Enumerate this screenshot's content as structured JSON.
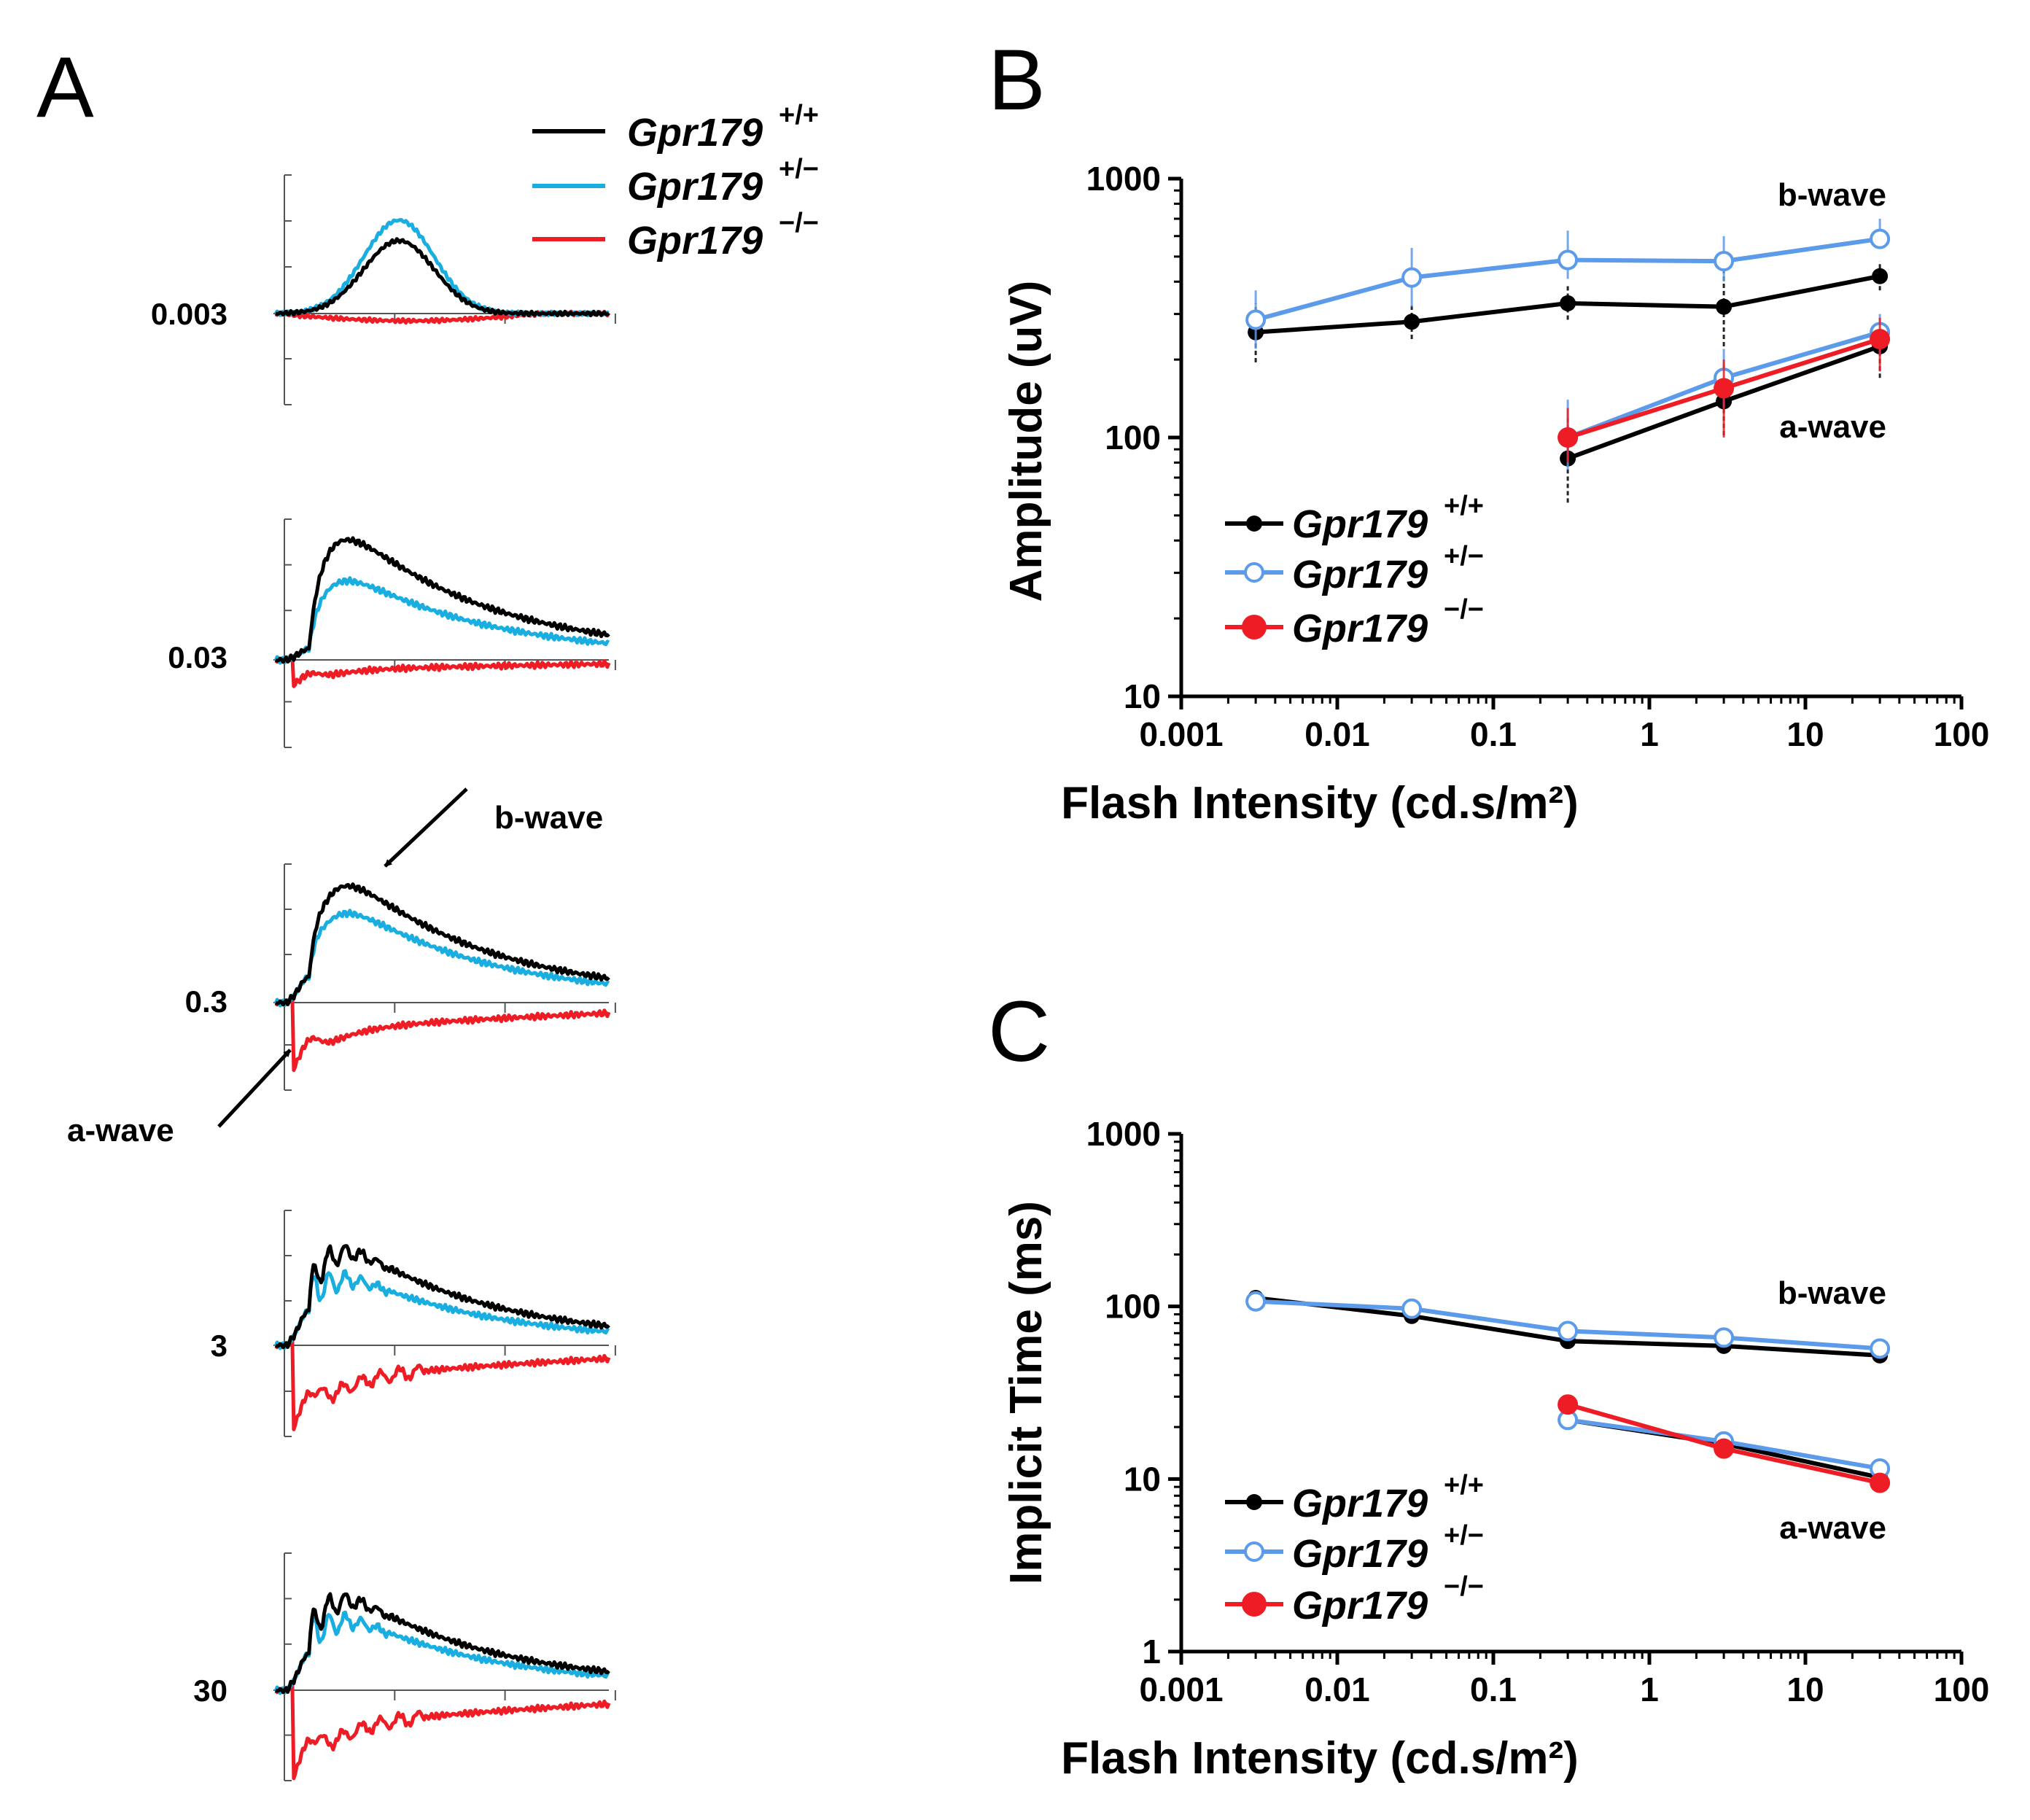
{
  "colors": {
    "wt": "#000000",
    "het_a": "#1aaee0",
    "het_bc": "#5b9bea",
    "ko": "#ee1c24"
  },
  "panel_letters": {
    "a": "A",
    "b": "B",
    "c": "C"
  },
  "genotype": {
    "gene": "Gpr179",
    "wt_sup": "+/+",
    "het_sup": "+/−",
    "ko_sup": "−/−"
  },
  "panel_a": {
    "intensities": [
      "0.003",
      "0.03",
      "0.3",
      "3",
      "30"
    ],
    "annotations": {
      "b_wave": "b-wave",
      "a_wave": "a-wave"
    }
  },
  "chart_data": [
    {
      "type": "line",
      "panel": "B",
      "title": "",
      "xlabel": "Flash Intensity (cd.s/m²)",
      "ylabel": "Amplitude (uV)",
      "xscale": "log",
      "yscale": "log",
      "xlim": [
        0.001,
        100
      ],
      "ylim": [
        10,
        1000
      ],
      "xticks": [
        0.001,
        0.01,
        0.1,
        1,
        10,
        100
      ],
      "xtick_labels": [
        "0.001",
        "0.01",
        "0.1",
        "1",
        "10",
        "100"
      ],
      "yticks": [
        10,
        100,
        1000
      ],
      "ytick_labels": [
        "10",
        "100",
        "1000"
      ],
      "legend_position": "bottom-left",
      "annotations": [
        "b-wave",
        "a-wave"
      ],
      "series": [
        {
          "name": "Gpr179 +/+ b-wave",
          "genotype": "wt",
          "marker": "filled",
          "x": [
            0.003,
            0.03,
            0.3,
            3,
            30
          ],
          "y": [
            255,
            280,
            330,
            320,
            420
          ],
          "err_lo": [
            195,
            240,
            285,
            225,
            370
          ],
          "err_hi": [
            330,
            330,
            390,
            450,
            480
          ]
        },
        {
          "name": "Gpr179 +/- b-wave",
          "genotype": "het",
          "marker": "open",
          "x": [
            0.003,
            0.03,
            0.3,
            3,
            30
          ],
          "y": [
            285,
            415,
            485,
            480,
            585
          ],
          "err_lo": [
            220,
            320,
            410,
            400,
            540
          ],
          "err_hi": [
            370,
            540,
            630,
            600,
            700
          ]
        },
        {
          "name": "Gpr179 +/+ a-wave",
          "genotype": "wt",
          "marker": "filled",
          "x": [
            0.3,
            3,
            30
          ],
          "y": [
            83,
            138,
            225
          ],
          "err_lo": [
            56,
            102,
            170
          ],
          "err_hi": [
            120,
            190,
            280
          ]
        },
        {
          "name": "Gpr179 +/- a-wave",
          "genotype": "het",
          "marker": "open",
          "x": [
            0.3,
            3,
            30
          ],
          "y": [
            100,
            170,
            255
          ],
          "err_lo": [
            75,
            130,
            210
          ],
          "err_hi": [
            140,
            220,
            300
          ]
        },
        {
          "name": "Gpr179 -/- a-wave",
          "genotype": "ko",
          "marker": "filled",
          "x": [
            0.3,
            3,
            30
          ],
          "y": [
            100,
            155,
            240
          ],
          "err_lo": [
            80,
            100,
            180
          ],
          "err_hi": [
            130,
            200,
            290
          ]
        }
      ]
    },
    {
      "type": "line",
      "panel": "C",
      "title": "",
      "xlabel": "Flash Intensity (cd.s/m²)",
      "ylabel": "Implicit Time (ms)",
      "xscale": "log",
      "yscale": "log",
      "xlim": [
        0.001,
        100
      ],
      "ylim": [
        1,
        1000
      ],
      "xticks": [
        0.001,
        0.01,
        0.1,
        1,
        10,
        100
      ],
      "xtick_labels": [
        "0.001",
        "0.01",
        "0.1",
        "1",
        "10",
        "100"
      ],
      "yticks": [
        1,
        10,
        100,
        1000
      ],
      "ytick_labels": [
        "1",
        "10",
        "100",
        "1000"
      ],
      "legend_position": "bottom-left",
      "annotations": [
        "b-wave",
        "a-wave"
      ],
      "series": [
        {
          "name": "Gpr179 +/+ b-wave",
          "genotype": "wt",
          "marker": "filled",
          "x": [
            0.003,
            0.03,
            0.3,
            3,
            30
          ],
          "y": [
            112,
            88,
            63,
            59,
            52
          ]
        },
        {
          "name": "Gpr179 +/- b-wave",
          "genotype": "het",
          "marker": "open",
          "x": [
            0.003,
            0.03,
            0.3,
            3,
            30
          ],
          "y": [
            107,
            97,
            72,
            66,
            57
          ]
        },
        {
          "name": "Gpr179 +/+ a-wave",
          "genotype": "wt",
          "marker": "filled",
          "x": [
            0.3,
            3,
            30
          ],
          "y": [
            22,
            16,
            10.2
          ]
        },
        {
          "name": "Gpr179 +/- a-wave",
          "genotype": "het",
          "marker": "open",
          "x": [
            0.3,
            3,
            30
          ],
          "y": [
            22,
            16.5,
            11.5
          ]
        },
        {
          "name": "Gpr179 -/- a-wave",
          "genotype": "ko",
          "marker": "filled",
          "x": [
            0.3,
            3,
            30
          ],
          "y": [
            27,
            15,
            9.5
          ]
        }
      ]
    }
  ]
}
